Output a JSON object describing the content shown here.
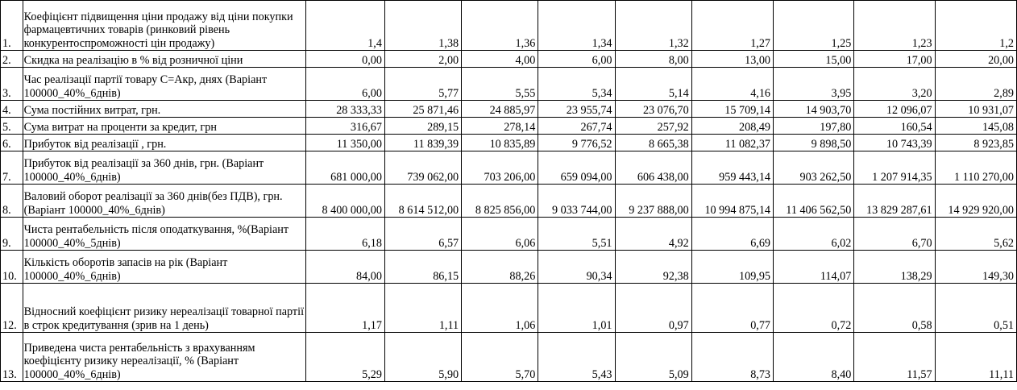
{
  "rows": [
    {
      "no": "1.",
      "label": "Коефіцієнт підвищення ціни продажу від ціни покупки фармацевтичних товарів (ринковий рівень конкурентоспроможності цін продажу)",
      "values": [
        "1,4",
        "1,38",
        "1,36",
        "1,34",
        "1,32",
        "1,27",
        "1,25",
        "1,23",
        "1,2"
      ]
    },
    {
      "no": "2.",
      "label": "Скидка на реалізацію в % від розничної ціни",
      "values": [
        "0,00",
        "2,00",
        "4,00",
        "6,00",
        "8,00",
        "13,00",
        "15,00",
        "17,00",
        "20,00"
      ]
    },
    {
      "no": "3.",
      "label": "Час реалізації партії товару С=Акр, днях (Варіант 100000_40%_6днів)",
      "values": [
        "6,00",
        "5,77",
        "5,55",
        "5,34",
        "5,14",
        "4,16",
        "3,95",
        "3,20",
        "2,89"
      ]
    },
    {
      "no": "4.",
      "label": "Сума постійних витрат, грн.",
      "values": [
        "28 333,33",
        "25 871,46",
        "24 885,97",
        "23 955,74",
        "23 076,70",
        "15 709,14",
        "14 903,70",
        "12 096,07",
        "10 931,07"
      ]
    },
    {
      "no": "5.",
      "label": "Сума витрат на проценти за кредит, грн",
      "values": [
        "316,67",
        "289,15",
        "278,14",
        "267,74",
        "257,92",
        "208,49",
        "197,80",
        "160,54",
        "145,08"
      ]
    },
    {
      "no": "6.",
      "label": "Прибуток від реалізації , грн.",
      "values": [
        "11 350,00",
        "11 839,39",
        "10 835,89",
        "9 776,52",
        "8 665,38",
        "11 082,37",
        "9 898,50",
        "10 743,39",
        "8 923,85"
      ]
    },
    {
      "no": "7.",
      "label": "Прибуток від реалізації за 360 днів, грн. (Варіант 100000_40%_6днів)",
      "values": [
        "681 000,00",
        "739 062,00",
        "703 206,00",
        "659 094,00",
        "606 438,00",
        "959 443,14",
        "903 262,50",
        "1 207 914,35",
        "1 110 270,00"
      ]
    },
    {
      "no": "8.",
      "label": "Валовий оборот реалізації за 360 днів(без ПДВ), грн. (Варіант 100000_40%_6днів)",
      "values": [
        "8 400 000,00",
        "8 614 512,00",
        "8 825 856,00",
        "9 033 744,00",
        "9 237 888,00",
        "10 994 875,14",
        "11 406 562,50",
        "13 829 287,61",
        "14 929 920,00"
      ]
    },
    {
      "no": "9.",
      "label": "Чиста рентабельність після оподаткування, %(Варіант 100000_40%_5днів)",
      "values": [
        "6,18",
        "6,57",
        "6,06",
        "5,51",
        "4,92",
        "6,69",
        "6,02",
        "6,70",
        "5,62"
      ]
    },
    {
      "no": "10.",
      "label": "Кількість оборотів запасів на рік (Варіант 100000_40%_6днів)",
      "values": [
        "84,00",
        "86,15",
        "88,26",
        "90,34",
        "92,38",
        "109,95",
        "114,07",
        "138,29",
        "149,30"
      ]
    },
    {
      "no": "12.",
      "label": "Відносний коефіцієнт ризику нереалізації товарної партії в строк кредитування (зрив на 1 день)",
      "values": [
        "1,17",
        "1,11",
        "1,06",
        "1,01",
        "0,97",
        "0,77",
        "0,72",
        "0,58",
        "0,51"
      ]
    },
    {
      "no": "13.",
      "label": "Приведена чиста рентабельність з врахуванням коефіцієнту ризику нереалізації, % (Варіант 100000_40%_6днів)",
      "values": [
        "5,29",
        "5,90",
        "5,70",
        "5,43",
        "5,09",
        "8,73",
        "8,40",
        "11,57",
        "11,11"
      ]
    }
  ]
}
